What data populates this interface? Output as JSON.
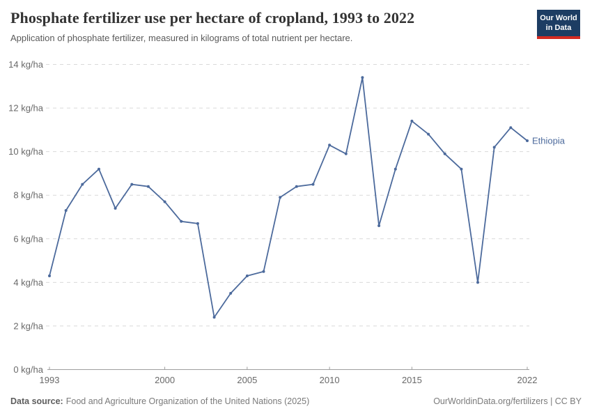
{
  "header": {
    "title": "Phosphate fertilizer use per hectare of cropland, 1993 to 2022",
    "subtitle": "Application of phosphate fertilizer, measured in kilograms of total nutrient per hectare.",
    "logo": {
      "line1": "Our World",
      "line2": "in Data"
    }
  },
  "chart_data": {
    "type": "line",
    "title": "Phosphate fertilizer use per hectare of cropland, 1993 to 2022",
    "x": [
      1993,
      1994,
      1995,
      1996,
      1997,
      1998,
      1999,
      2000,
      2001,
      2002,
      2003,
      2004,
      2005,
      2006,
      2007,
      2008,
      2009,
      2010,
      2011,
      2012,
      2013,
      2014,
      2015,
      2016,
      2017,
      2018,
      2019,
      2020,
      2021,
      2022
    ],
    "series": [
      {
        "name": "Ethiopia",
        "color": "#4c6a9c",
        "values": [
          4.3,
          7.3,
          8.5,
          9.2,
          7.4,
          8.5,
          8.4,
          7.7,
          6.8,
          6.7,
          2.4,
          3.5,
          4.3,
          4.5,
          7.9,
          8.4,
          8.5,
          10.3,
          9.9,
          13.4,
          6.6,
          9.2,
          11.4,
          10.8,
          9.9,
          9.2,
          4.0,
          10.2,
          11.1,
          10.5
        ]
      }
    ],
    "y_unit": "kg/ha",
    "y_ticks": [
      0,
      2,
      4,
      6,
      8,
      10,
      12,
      14
    ],
    "x_ticks": [
      1993,
      2000,
      2005,
      2010,
      2015,
      2022
    ],
    "ylim": [
      0,
      14
    ],
    "xlim": [
      1993,
      2022
    ],
    "grid": "horizontal-dashed",
    "legend": "line-end-label",
    "xlabel": "",
    "ylabel": "kg/ha"
  },
  "footer": {
    "source_label": "Data source:",
    "source_text": "Food and Agriculture Organization of the United Nations (2025)",
    "attribution": "OurWorldinData.org/fertilizers | CC BY"
  },
  "colors": {
    "line": "#4c6a9c",
    "logo_bg": "#1d3d63",
    "logo_stripe": "#d42b21",
    "gridline": "#d9d9d9",
    "axis": "#9e9e9e",
    "tick_label": "#696969"
  }
}
